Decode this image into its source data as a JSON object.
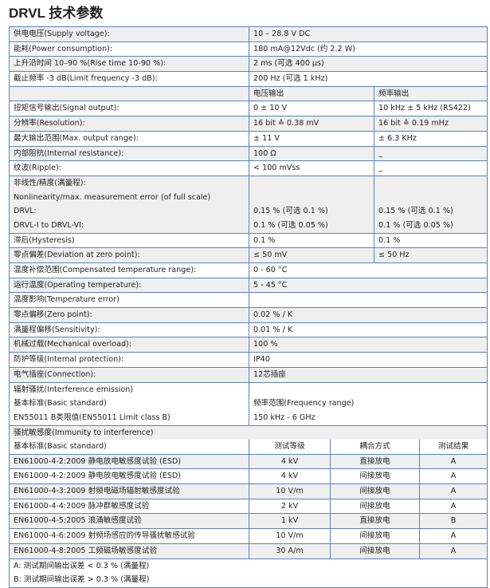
{
  "title": "DRVL 技术参数",
  "specs": [
    {
      "label": [
        "供电电压(Supply voltage):"
      ],
      "values": [
        [
          "10 – 28.8 V DC"
        ]
      ]
    },
    {
      "label": [
        "能耗(Power consumption):"
      ],
      "values": [
        [
          "180 mA@12Vdc (约 2.2 W)"
        ]
      ]
    },
    {
      "label": [
        "上升沿时间 10–90 %(Rise time 10-90 %):"
      ],
      "values": [
        [
          "2 ms     (可选 400 µs)"
        ]
      ]
    },
    {
      "label": [
        "截止频率 -3 dB(Limit frequency -3 dB):"
      ],
      "values": [
        [
          "200 Hz  (可选 1 kHz)"
        ]
      ]
    },
    {
      "label": [
        ""
      ],
      "values": [
        [
          "电压输出"
        ],
        [
          "频率输出"
        ]
      ]
    },
    {
      "label": [
        "扭矩信号输出(Signal output):"
      ],
      "values": [
        [
          "0 ± 10 V"
        ],
        [
          "10 kHz ± 5 kHz (RS422)"
        ]
      ]
    },
    {
      "label": [
        "分辨率(Resolution):"
      ],
      "values": [
        [
          "16 bit ≙ 0.38 mV"
        ],
        [
          "16 bit ≙ 0.19 mHz"
        ]
      ]
    },
    {
      "label": [
        "最大输出范围(Max. output range):"
      ],
      "values": [
        [
          "± 11 V"
        ],
        [
          "± 6.3 KHz"
        ]
      ]
    },
    {
      "label": [
        "内部阻抗(Internal resistance):"
      ],
      "values": [
        [
          "100 Ω"
        ],
        [
          "_"
        ]
      ]
    },
    {
      "label": [
        "纹波(Ripple):"
      ],
      "values": [
        [
          "< 100 mVss"
        ],
        [
          "_"
        ]
      ]
    },
    {
      "label": [
        "非线性/精度(满量程):",
        "Nonlinearity/max. measurement error (of full scale)",
        "DRVL:",
        "DRVL-I to DRVL-VI:"
      ],
      "values": [
        [
          "",
          "",
          "0.15 % (可选 0.1 %)",
          "0.1 %  (可选 0.05 %)"
        ],
        [
          "",
          "",
          "0.15 % (可选 0.1 %)",
          "0.1 %  (可选 0.05 %)"
        ]
      ]
    },
    {
      "label": [
        "滞后(Hysteresis)"
      ],
      "values": [
        [
          "0.1 %"
        ],
        [
          "0.1 %"
        ]
      ]
    },
    {
      "label": [
        "零点偏差(Deviation at zero point):"
      ],
      "values": [
        [
          "≤ 50 mV"
        ],
        [
          "≤ 50 Hz"
        ]
      ]
    },
    {
      "label": [
        "温度补偿范围(Compensated temperature range):"
      ],
      "values": [
        [
          "0 - 60 °C"
        ]
      ]
    },
    {
      "label": [
        "运行温度(Operating temperature):"
      ],
      "values": [
        [
          "5 - 45 °C"
        ]
      ]
    },
    {
      "label": [
        "温度影响(Temperature error)"
      ],
      "values": [
        [
          ""
        ]
      ]
    },
    {
      "label": [
        "零点偏移(Zero point):"
      ],
      "values": [
        [
          "0.02 % / K"
        ]
      ]
    },
    {
      "label": [
        "满量程偏移(Sensitivity):"
      ],
      "values": [
        [
          "0.01 % / K"
        ]
      ]
    },
    {
      "label": [
        "机械过载(Mechanical overload):"
      ],
      "values": [
        [
          "100 %"
        ]
      ]
    },
    {
      "label": [
        "防护等级(Internal protection):"
      ],
      "values": [
        [
          "IP40"
        ]
      ]
    },
    {
      "label": [
        "电气插座(Connection):"
      ],
      "values": [
        [
          "12芯插座"
        ]
      ]
    },
    {
      "label": [
        "辐射骚扰(Interference emission)",
        "基本标准(Basic standard)",
        "EN55011 B类限值(EN55011 Limit class B)"
      ],
      "values": [
        [
          "",
          "频率范围(Frequency range)",
          "150 kHz - 6 GHz"
        ]
      ]
    },
    {
      "label": [
        "骚扰敏感度(Immunity to interference)"
      ],
      "values": []
    }
  ],
  "emc": {
    "headers": [
      "基本标准(Basic standard)",
      "测试等级",
      "耦合方式",
      "测试结果"
    ],
    "rows": [
      [
        "EN61000-4-2:2009 静电放电敏感度试验 (ESD)",
        "4 kV",
        "直接放电",
        "A"
      ],
      [
        "EN61000-4-2:2009 静电放电敏感度试验 (ESD)",
        "4 kV",
        "间接放电",
        "A"
      ],
      [
        "EN61000-4-3:2009 射频电磁场辐射敏感度试验",
        "10 V/m",
        "间接放电",
        "A"
      ],
      [
        "EN61000-4-4:2009 脉冲群敏感度试验",
        "2 kV",
        "间接放电",
        "A"
      ],
      [
        "EN61000-4-5:2005 浪涌敏感度试验",
        "1 kV",
        "直接放电",
        "B"
      ],
      [
        "EN61000-4-6:2009 射频场感应的传导骚扰敏感试验",
        "10 V/m",
        "间接放电",
        "A"
      ],
      [
        "EN61000-4-8:2005 工频磁场敏感度试验",
        "30 A/m",
        "间接放电",
        "A"
      ]
    ],
    "notes": [
      "A: 测试期间输出误差 < 0.3 % (满量程)",
      "B: 测试期间输出误差 > 0.3 % (满量程)"
    ]
  }
}
